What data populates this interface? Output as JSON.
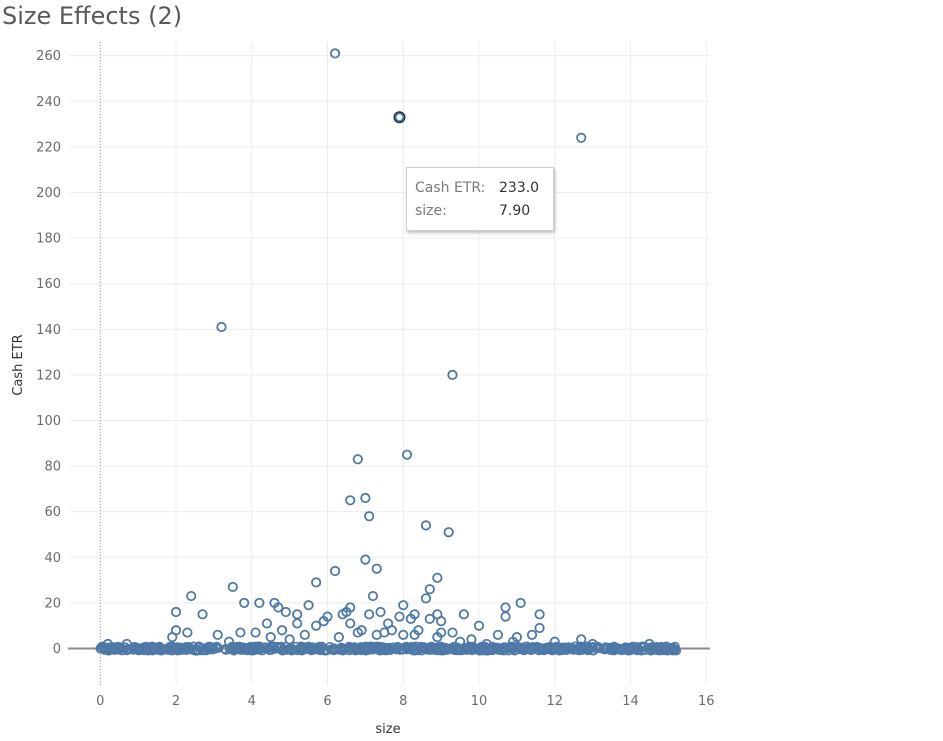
{
  "title": "Size Effects (2)",
  "tooltip": {
    "rows": [
      {
        "key": "Cash ETR:",
        "value": "233.0"
      },
      {
        "key": "size:",
        "value": "7.90"
      }
    ]
  },
  "colors": {
    "marker": "#4e79a7",
    "highlight": "#1f2f40",
    "grid": "#ececec",
    "zero_line": "#8a8a8a"
  },
  "chart_data": {
    "type": "scatter",
    "title": "Size Effects (2)",
    "xlabel": "size",
    "ylabel": "Cash ETR",
    "xlim": [
      -0.8,
      16.1
    ],
    "ylim": [
      -16,
      266
    ],
    "xticks": [
      0,
      2,
      4,
      6,
      8,
      10,
      12,
      14,
      16
    ],
    "yticks": [
      0,
      20,
      40,
      60,
      80,
      100,
      120,
      140,
      160,
      180,
      200,
      220,
      240,
      260
    ],
    "grid": true,
    "marker": "hollow-circle",
    "highlighted_point": {
      "x": 7.9,
      "y": 233.0
    },
    "outliers": [
      {
        "x": 6.2,
        "y": 261
      },
      {
        "x": 7.9,
        "y": 233
      },
      {
        "x": 12.7,
        "y": 224
      },
      {
        "x": 3.2,
        "y": 141
      },
      {
        "x": 9.3,
        "y": 120
      },
      {
        "x": 8.1,
        "y": 85
      },
      {
        "x": 6.8,
        "y": 83
      },
      {
        "x": 7.0,
        "y": 66
      },
      {
        "x": 6.6,
        "y": 65
      },
      {
        "x": 7.1,
        "y": 58
      },
      {
        "x": 8.6,
        "y": 54
      },
      {
        "x": 9.2,
        "y": 51
      },
      {
        "x": 7.0,
        "y": 39
      },
      {
        "x": 7.3,
        "y": 35
      },
      {
        "x": 6.2,
        "y": 34
      },
      {
        "x": 8.9,
        "y": 31
      },
      {
        "x": 5.7,
        "y": 29
      },
      {
        "x": 3.5,
        "y": 27
      },
      {
        "x": 8.7,
        "y": 26
      },
      {
        "x": 2.4,
        "y": 23
      },
      {
        "x": 7.2,
        "y": 23
      },
      {
        "x": 8.6,
        "y": 22
      },
      {
        "x": 3.8,
        "y": 20
      },
      {
        "x": 4.2,
        "y": 20
      },
      {
        "x": 4.6,
        "y": 20
      },
      {
        "x": 11.1,
        "y": 20
      },
      {
        "x": 5.5,
        "y": 19
      },
      {
        "x": 8.0,
        "y": 19
      },
      {
        "x": 10.7,
        "y": 18
      },
      {
        "x": 6.6,
        "y": 18
      },
      {
        "x": 4.7,
        "y": 18
      },
      {
        "x": 2.0,
        "y": 16
      },
      {
        "x": 4.9,
        "y": 16
      },
      {
        "x": 6.5,
        "y": 16
      },
      {
        "x": 7.4,
        "y": 16
      },
      {
        "x": 8.3,
        "y": 15
      },
      {
        "x": 8.9,
        "y": 15
      },
      {
        "x": 9.6,
        "y": 15
      },
      {
        "x": 11.6,
        "y": 15
      },
      {
        "x": 2.7,
        "y": 15
      },
      {
        "x": 5.2,
        "y": 15
      },
      {
        "x": 6.4,
        "y": 15
      },
      {
        "x": 7.1,
        "y": 15
      },
      {
        "x": 7.9,
        "y": 14
      },
      {
        "x": 6.0,
        "y": 14
      },
      {
        "x": 8.2,
        "y": 13
      },
      {
        "x": 8.7,
        "y": 13
      },
      {
        "x": 9.0,
        "y": 12
      },
      {
        "x": 10.7,
        "y": 14
      },
      {
        "x": 5.9,
        "y": 12
      },
      {
        "x": 6.6,
        "y": 11
      },
      {
        "x": 7.6,
        "y": 11
      },
      {
        "x": 4.4,
        "y": 11
      },
      {
        "x": 5.2,
        "y": 11
      },
      {
        "x": 5.7,
        "y": 10
      },
      {
        "x": 10.0,
        "y": 10
      },
      {
        "x": 11.6,
        "y": 9
      },
      {
        "x": 2.0,
        "y": 8
      },
      {
        "x": 2.3,
        "y": 7
      },
      {
        "x": 3.7,
        "y": 7
      },
      {
        "x": 4.1,
        "y": 7
      },
      {
        "x": 4.8,
        "y": 8
      },
      {
        "x": 6.9,
        "y": 8
      },
      {
        "x": 7.7,
        "y": 8
      },
      {
        "x": 8.4,
        "y": 8
      },
      {
        "x": 9.3,
        "y": 7
      },
      {
        "x": 10.5,
        "y": 6
      },
      {
        "x": 11.4,
        "y": 6
      },
      {
        "x": 3.1,
        "y": 6
      },
      {
        "x": 5.4,
        "y": 6
      },
      {
        "x": 6.3,
        "y": 5
      },
      {
        "x": 8.0,
        "y": 6
      },
      {
        "x": 8.9,
        "y": 5
      },
      {
        "x": 9.8,
        "y": 4
      },
      {
        "x": 11.0,
        "y": 5
      },
      {
        "x": 12.7,
        "y": 4
      },
      {
        "x": 1.9,
        "y": 5
      },
      {
        "x": 4.5,
        "y": 5
      },
      {
        "x": 5.0,
        "y": 4
      },
      {
        "x": 7.3,
        "y": 6
      },
      {
        "x": 9.0,
        "y": 7
      },
      {
        "x": 10.9,
        "y": 3
      },
      {
        "x": 12.0,
        "y": 3
      },
      {
        "x": 0.2,
        "y": 2
      },
      {
        "x": 0.7,
        "y": 2
      },
      {
        "x": 14.5,
        "y": 2
      },
      {
        "x": 13.0,
        "y": 2
      },
      {
        "x": 3.4,
        "y": 3
      },
      {
        "x": 6.8,
        "y": 7
      },
      {
        "x": 7.5,
        "y": 7
      },
      {
        "x": 8.3,
        "y": 6
      },
      {
        "x": 9.5,
        "y": 3
      },
      {
        "x": 10.2,
        "y": 2
      }
    ],
    "dense_band": {
      "x_range": [
        0.0,
        15.3
      ],
      "y_range": [
        -1,
        1
      ]
    }
  }
}
